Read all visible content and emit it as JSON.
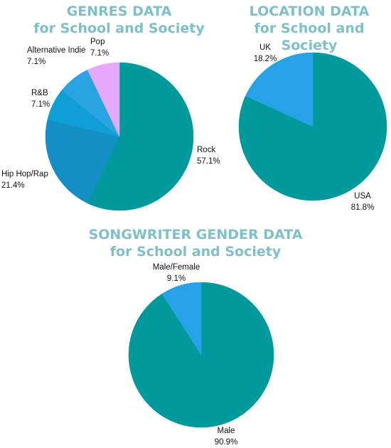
{
  "chart_data": [
    {
      "type": "pie",
      "title": "GENRES DATA",
      "subtitle": "for School and Society",
      "slices": [
        {
          "label": "Rock",
          "pct_text": "57.1%",
          "value": 57.1,
          "color": "#019a9c"
        },
        {
          "label": "Hip Hop/Rap",
          "pct_text": "21.4%",
          "value": 21.4,
          "color": "#138fc6"
        },
        {
          "label": "R&B",
          "pct_text": "7.1%",
          "value": 7.1,
          "color": "#0d9fd6"
        },
        {
          "label": "Alternative Indie",
          "pct_text": "7.1%",
          "value": 7.1,
          "color": "#29a4e1"
        },
        {
          "label": "Pop",
          "pct_text": "7.1%",
          "value": 7.1,
          "color": "#e6a9fb"
        }
      ]
    },
    {
      "type": "pie",
      "title": "LOCATION DATA",
      "subtitle": "for School and Society",
      "slices": [
        {
          "label": "USA",
          "pct_text": "81.8%",
          "value": 81.8,
          "color": "#019a9c"
        },
        {
          "label": "UK",
          "pct_text": "18.2%",
          "value": 18.2,
          "color": "#26a2e6"
        }
      ]
    },
    {
      "type": "pie",
      "title": "SONGWRITER GENDER DATA",
      "subtitle": "for School and Society",
      "slices": [
        {
          "label": "Male",
          "pct_text": "90.9%",
          "value": 90.9,
          "color": "#019a9c"
        },
        {
          "label": "Male/Female",
          "pct_text": "9.1%",
          "value": 9.1,
          "color": "#26a2e6"
        }
      ]
    }
  ]
}
